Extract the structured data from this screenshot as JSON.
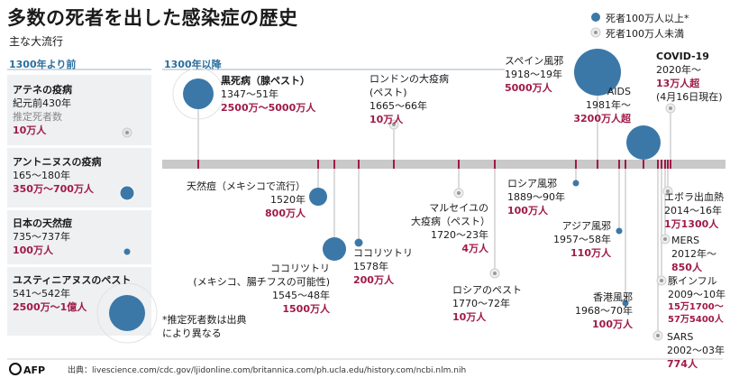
{
  "title": "多数の死者を出した感染症の歴史",
  "subtitle": "主な大流行",
  "sections": {
    "before": "1300年より前",
    "after": "1300年以降"
  },
  "legend": {
    "large": "死者100万人以上*",
    "small": "死者100万人未満"
  },
  "colors": {
    "blue": "#3b78a8",
    "red": "#a01a48",
    "gray": "#b8b8b8",
    "timeline": "#c9c9c9",
    "panel": "#eef0f2"
  },
  "left_events": [
    {
      "name": "アテネの疫病",
      "period": "紀元前430年",
      "note": "推定死者数",
      "deaths": "10万人",
      "marker": "small"
    },
    {
      "name": "アントニヌスの疫病",
      "period": "165〜180年",
      "deaths": "350万〜700万人",
      "marker": "large"
    },
    {
      "name": "日本の天然痘",
      "period": "735〜737年",
      "deaths": "100万人",
      "marker": "large"
    },
    {
      "name": "ユスティニアヌスのペスト",
      "period": "541〜542年",
      "deaths": "2500万〜1億人",
      "marker": "large"
    }
  ],
  "footnote": "*推定死者数は出典により異なる",
  "events": [
    {
      "name": "黒死病（腺ペスト）",
      "period": "1347〜51年",
      "deaths": "2500万〜5000万人",
      "marker": "large"
    },
    {
      "name": "天然痘（メキシコで流行）",
      "period": "1520年",
      "deaths": "800万人",
      "marker": "large"
    },
    {
      "name": "ココリツトリ",
      "name2": "(メキシコ、腸チフスの可能性)",
      "period": "1545〜48年",
      "deaths": "1500万人",
      "marker": "large"
    },
    {
      "name": "ココリツトリ",
      "period": "1578年",
      "deaths": "200万人",
      "marker": "large"
    },
    {
      "name": "ロンドンの大疫病",
      "name2": "(ペスト)",
      "period": "1665〜66年",
      "deaths": "10万人",
      "marker": "small"
    },
    {
      "name": "マルセイユの",
      "name2": "大疫病（ペスト）",
      "period": "1720〜23年",
      "deaths": "4万人",
      "marker": "small"
    },
    {
      "name": "ロシアのペスト",
      "period": "1770〜72年",
      "deaths": "10万人",
      "marker": "small"
    },
    {
      "name": "ロシア風邪",
      "period": "1889〜90年",
      "deaths": "100万人",
      "marker": "large"
    },
    {
      "name": "スペイン風邪",
      "period": "1918〜19年",
      "deaths": "5000万人",
      "marker": "large"
    },
    {
      "name": "アジア風邪",
      "period": "1957〜58年",
      "deaths": "110万人",
      "marker": "large"
    },
    {
      "name": "香港風邪",
      "period": "1968〜70年",
      "deaths": "100万人",
      "marker": "large"
    },
    {
      "name": "AIDS",
      "period": "1981年〜",
      "deaths": "3200万人超",
      "marker": "large"
    },
    {
      "name": "COVID-19",
      "period": "2020年〜",
      "deaths": "13万人超",
      "note": "(4月16日現在)",
      "marker": "small"
    },
    {
      "name": "エボラ出血熱",
      "period": "2014〜16年",
      "deaths": "1万1300人",
      "marker": "small"
    },
    {
      "name": "MERS",
      "period": "2012年〜",
      "deaths": "850人",
      "marker": "small"
    },
    {
      "name": "豚インフル",
      "period": "2009〜10年",
      "deaths": "15万1700〜57万5400人",
      "marker": "small"
    },
    {
      "name": "SARS",
      "period": "2002〜03年",
      "deaths": "774人",
      "marker": "small"
    }
  ],
  "source": "出典：livescience.com/cdc.gov/ljidonline.com/britannica.com/ph.ucla.edu/history.com/ncbi.nlm.nih",
  "logo": "AFP"
}
